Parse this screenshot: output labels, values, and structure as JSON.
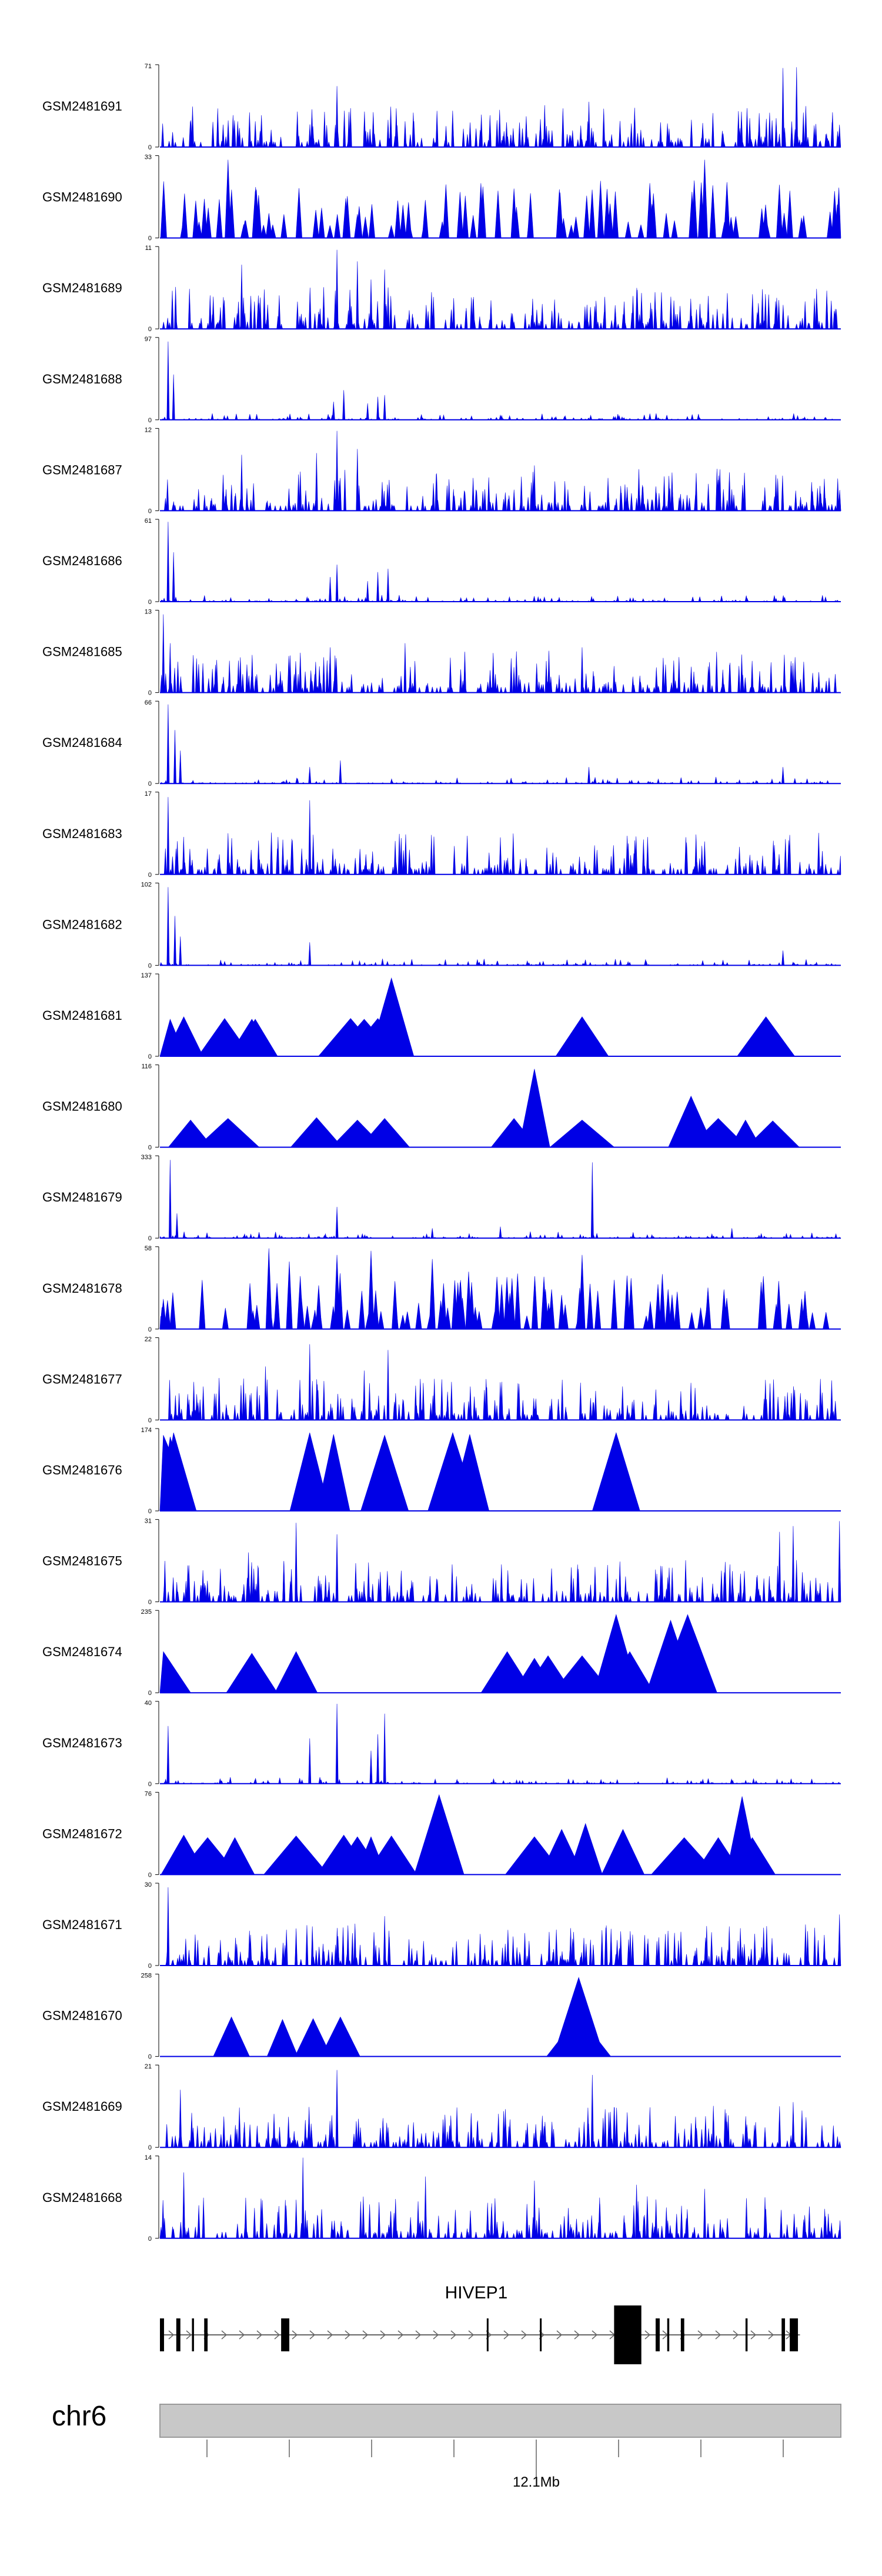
{
  "chart_data": {
    "type": "area",
    "chromosome": "chr6",
    "gene": "HIVEP1",
    "position_label": "12.1Mb",
    "color": "#0000e6",
    "tracks": [
      {
        "name": "GSM2481691",
        "max": 71,
        "ymin": 0,
        "style": "dense",
        "peaks": [
          [
            0.26,
            0.74
          ],
          [
            0.335,
            0.33
          ],
          [
            0.63,
            0.55
          ],
          [
            0.915,
            0.96
          ],
          [
            0.935,
            0.97
          ],
          [
            0.905,
            0.35
          ],
          [
            0.998,
            0.27
          ]
        ]
      },
      {
        "name": "GSM2481690",
        "max": 33,
        "ymin": 0,
        "style": "comb",
        "peaks": [
          [
            0.1,
            0.95
          ],
          [
            0.42,
            0.65
          ],
          [
            0.8,
            0.95
          ],
          [
            0.52,
            0.6
          ]
        ]
      },
      {
        "name": "GSM2481689",
        "max": 11,
        "ymin": 0,
        "style": "dense",
        "peaks": [
          [
            0.26,
            0.96
          ],
          [
            0.29,
            0.82
          ],
          [
            0.33,
            0.72
          ],
          [
            0.12,
            0.78
          ],
          [
            0.31,
            0.6
          ]
        ]
      },
      {
        "name": "GSM2481688",
        "max": 97,
        "ymin": 0,
        "style": "sparse",
        "peaks": [
          [
            0.012,
            0.95
          ],
          [
            0.02,
            0.55
          ],
          [
            0.27,
            0.36
          ],
          [
            0.255,
            0.22
          ],
          [
            0.32,
            0.28
          ],
          [
            0.33,
            0.3
          ],
          [
            0.305,
            0.2
          ]
        ]
      },
      {
        "name": "GSM2481687",
        "max": 12,
        "ymin": 0,
        "style": "dense",
        "peaks": [
          [
            0.26,
            0.97
          ],
          [
            0.29,
            0.75
          ],
          [
            0.23,
            0.7
          ],
          [
            0.55,
            0.55
          ],
          [
            0.12,
            0.68
          ]
        ]
      },
      {
        "name": "GSM2481686",
        "max": 61,
        "ymin": 0,
        "style": "sparse",
        "peaks": [
          [
            0.012,
            0.97
          ],
          [
            0.02,
            0.6
          ],
          [
            0.26,
            0.45
          ],
          [
            0.25,
            0.3
          ],
          [
            0.32,
            0.36
          ],
          [
            0.335,
            0.4
          ],
          [
            0.305,
            0.25
          ]
        ]
      },
      {
        "name": "GSM2481685",
        "max": 13,
        "ymin": 0,
        "style": "dense",
        "peaks": [
          [
            0.005,
            0.95
          ],
          [
            0.015,
            0.6
          ],
          [
            0.25,
            0.55
          ],
          [
            0.36,
            0.6
          ],
          [
            0.62,
            0.55
          ]
        ]
      },
      {
        "name": "GSM2481684",
        "max": 66,
        "ymin": 0,
        "style": "sparse",
        "peaks": [
          [
            0.012,
            0.96
          ],
          [
            0.022,
            0.65
          ],
          [
            0.03,
            0.4
          ],
          [
            0.22,
            0.2
          ],
          [
            0.265,
            0.28
          ],
          [
            0.63,
            0.2
          ],
          [
            0.915,
            0.2
          ]
        ]
      },
      {
        "name": "GSM2481683",
        "max": 17,
        "ymin": 0,
        "style": "dense",
        "peaks": [
          [
            0.012,
            0.94
          ],
          [
            0.22,
            0.9
          ],
          [
            0.1,
            0.5
          ],
          [
            0.5,
            0.45
          ],
          [
            0.8,
            0.4
          ]
        ]
      },
      {
        "name": "GSM2481682",
        "max": 102,
        "ymin": 0,
        "style": "sparse",
        "peaks": [
          [
            0.012,
            0.95
          ],
          [
            0.022,
            0.6
          ],
          [
            0.03,
            0.35
          ],
          [
            0.22,
            0.28
          ],
          [
            0.915,
            0.18
          ]
        ]
      },
      {
        "name": "GSM2481681",
        "max": 137,
        "ymin": 0,
        "style": "triangles",
        "peaks": [
          [
            0.015,
            0.45
          ],
          [
            0.035,
            0.48
          ],
          [
            0.095,
            0.46
          ],
          [
            0.135,
            0.45
          ],
          [
            0.14,
            0.45
          ],
          [
            0.28,
            0.46
          ],
          [
            0.3,
            0.45
          ],
          [
            0.32,
            0.46
          ],
          [
            0.34,
            0.95
          ],
          [
            0.62,
            0.48
          ],
          [
            0.89,
            0.48
          ]
        ]
      },
      {
        "name": "GSM2481680",
        "max": 116,
        "ymin": 0,
        "style": "triangles",
        "peaks": [
          [
            0.045,
            0.33
          ],
          [
            0.1,
            0.35
          ],
          [
            0.23,
            0.36
          ],
          [
            0.29,
            0.33
          ],
          [
            0.33,
            0.35
          ],
          [
            0.52,
            0.35
          ],
          [
            0.55,
            0.95
          ],
          [
            0.62,
            0.33
          ],
          [
            0.78,
            0.62
          ],
          [
            0.82,
            0.35
          ],
          [
            0.86,
            0.33
          ],
          [
            0.9,
            0.32
          ]
        ]
      },
      {
        "name": "GSM2481679",
        "max": 333,
        "ymin": 0,
        "style": "sparse",
        "peaks": [
          [
            0.015,
            0.95
          ],
          [
            0.025,
            0.3
          ],
          [
            0.26,
            0.38
          ],
          [
            0.635,
            0.92
          ],
          [
            0.4,
            0.12
          ],
          [
            0.5,
            0.14
          ],
          [
            0.84,
            0.12
          ]
        ]
      },
      {
        "name": "GSM2481678",
        "max": 58,
        "ymin": 0,
        "style": "comb",
        "peaks": [
          [
            0.16,
            0.98
          ],
          [
            0.19,
            0.82
          ],
          [
            0.62,
            0.9
          ],
          [
            0.4,
            0.85
          ],
          [
            0.31,
            0.95
          ],
          [
            0.26,
            0.9
          ]
        ]
      },
      {
        "name": "GSM2481677",
        "max": 22,
        "ymin": 0,
        "style": "dense",
        "peaks": [
          [
            0.22,
            0.92
          ],
          [
            0.335,
            0.85
          ],
          [
            0.155,
            0.65
          ],
          [
            0.3,
            0.6
          ]
        ]
      },
      {
        "name": "GSM2481676",
        "max": 174,
        "ymin": 0,
        "style": "triangles",
        "peaks": [
          [
            0.005,
            0.92
          ],
          [
            0.015,
            0.9
          ],
          [
            0.02,
            0.95
          ],
          [
            0.22,
            0.95
          ],
          [
            0.255,
            0.93
          ],
          [
            0.33,
            0.92
          ],
          [
            0.43,
            0.95
          ],
          [
            0.455,
            0.93
          ],
          [
            0.67,
            0.95
          ]
        ]
      },
      {
        "name": "GSM2481675",
        "max": 31,
        "ymin": 0,
        "style": "dense",
        "peaks": [
          [
            0.2,
            0.96
          ],
          [
            0.26,
            0.82
          ],
          [
            0.91,
            0.85
          ],
          [
            0.93,
            0.92
          ],
          [
            0.998,
            0.98
          ],
          [
            0.13,
            0.6
          ]
        ]
      },
      {
        "name": "GSM2481674",
        "max": 235,
        "ymin": 0,
        "style": "triangles",
        "peaks": [
          [
            0.005,
            0.5
          ],
          [
            0.135,
            0.48
          ],
          [
            0.2,
            0.5
          ],
          [
            0.51,
            0.5
          ],
          [
            0.55,
            0.42
          ],
          [
            0.57,
            0.45
          ],
          [
            0.62,
            0.45
          ],
          [
            0.67,
            0.95
          ],
          [
            0.69,
            0.5
          ],
          [
            0.75,
            0.88
          ],
          [
            0.775,
            0.95
          ]
        ]
      },
      {
        "name": "GSM2481673",
        "max": 40,
        "ymin": 0,
        "style": "sparse",
        "peaks": [
          [
            0.012,
            0.7
          ],
          [
            0.26,
            0.97
          ],
          [
            0.33,
            0.85
          ],
          [
            0.22,
            0.55
          ],
          [
            0.32,
            0.6
          ],
          [
            0.31,
            0.4
          ]
        ]
      },
      {
        "name": "GSM2481672",
        "max": 76,
        "ymin": 0,
        "style": "triangles",
        "peaks": [
          [
            0.035,
            0.48
          ],
          [
            0.07,
            0.45
          ],
          [
            0.11,
            0.45
          ],
          [
            0.2,
            0.47
          ],
          [
            0.27,
            0.48
          ],
          [
            0.29,
            0.46
          ],
          [
            0.31,
            0.46
          ],
          [
            0.34,
            0.47
          ],
          [
            0.41,
            0.97
          ],
          [
            0.55,
            0.46
          ],
          [
            0.59,
            0.55
          ],
          [
            0.625,
            0.62
          ],
          [
            0.68,
            0.55
          ],
          [
            0.77,
            0.45
          ],
          [
            0.82,
            0.45
          ],
          [
            0.855,
            0.95
          ],
          [
            0.87,
            0.45
          ]
        ]
      },
      {
        "name": "GSM2481671",
        "max": 30,
        "ymin": 0,
        "style": "dense",
        "peaks": [
          [
            0.012,
            0.95
          ],
          [
            0.33,
            0.6
          ],
          [
            0.998,
            0.62
          ],
          [
            0.2,
            0.45
          ]
        ]
      },
      {
        "name": "GSM2481670",
        "max": 258,
        "ymin": 0,
        "style": "triangles",
        "peaks": [
          [
            0.105,
            0.48
          ],
          [
            0.18,
            0.45
          ],
          [
            0.225,
            0.46
          ],
          [
            0.265,
            0.48
          ],
          [
            0.615,
            0.5
          ],
          [
            0.615,
            0.96
          ]
        ]
      },
      {
        "name": "GSM2481669",
        "max": 21,
        "ymin": 0,
        "style": "dense",
        "peaks": [
          [
            0.26,
            0.94
          ],
          [
            0.635,
            0.88
          ],
          [
            0.03,
            0.7
          ],
          [
            0.91,
            0.5
          ],
          [
            0.93,
            0.55
          ]
        ]
      },
      {
        "name": "GSM2481668",
        "max": 14,
        "ymin": 0,
        "style": "dense",
        "peaks": [
          [
            0.21,
            0.98
          ],
          [
            0.035,
            0.8
          ],
          [
            0.39,
            0.75
          ],
          [
            0.55,
            0.7
          ],
          [
            0.7,
            0.65
          ],
          [
            0.8,
            0.6
          ]
        ]
      }
    ],
    "gene_model": {
      "strand": "+",
      "exons": [
        [
          0.0,
          0.006
        ],
        [
          0.024,
          0.03
        ],
        [
          0.047,
          0.05
        ],
        [
          0.065,
          0.07
        ],
        [
          0.178,
          0.19
        ],
        [
          0.48,
          0.482
        ],
        [
          0.558,
          0.56
        ],
        [
          0.667,
          0.707
        ],
        [
          0.728,
          0.734
        ],
        [
          0.745,
          0.748
        ],
        [
          0.765,
          0.77
        ],
        [
          0.86,
          0.863
        ],
        [
          0.913,
          0.918
        ],
        [
          0.925,
          0.937
        ]
      ]
    },
    "ideogram": {
      "tick_count": 8,
      "labeled_tick_index": 4
    }
  }
}
